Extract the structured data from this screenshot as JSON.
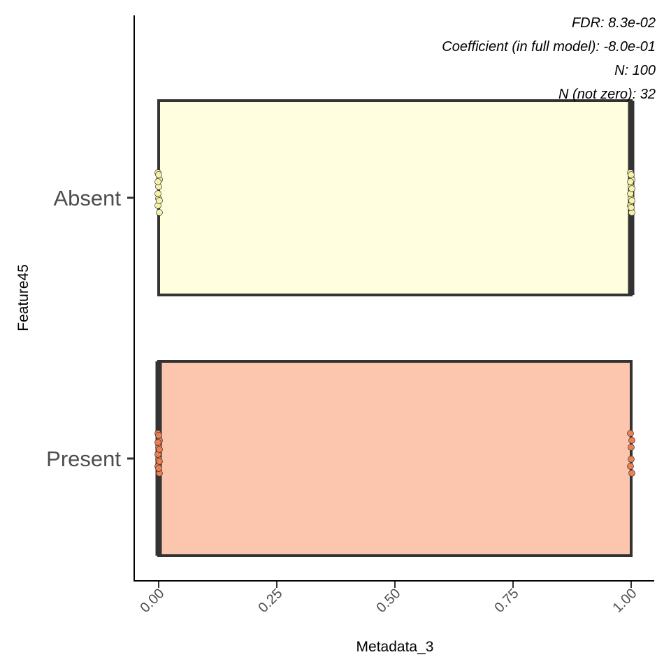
{
  "chart_data": {
    "type": "boxplot",
    "orientation": "horizontal",
    "xlabel": "Metadata_3",
    "ylabel": "Feature45",
    "xlim": [
      -0.05,
      1.05
    ],
    "x_ticks": [
      0,
      0.25,
      0.5,
      0.75,
      1.0
    ],
    "x_tick_labels": [
      "0.00",
      "0.25",
      "0.50",
      "0.75",
      "1.00"
    ],
    "categories": [
      "Absent",
      "Present"
    ],
    "grid": false,
    "legend": "none",
    "annotations": [
      "FDR: 8.3e-02",
      "Coefficient (in full model): -8.0e-01",
      "N: 100",
      "N (not zero): 32"
    ],
    "boxes": [
      {
        "category": "Absent",
        "fill": "#ffffe0",
        "point_color": "#f5f2a8",
        "q1": 0,
        "median": 1,
        "q3": 1,
        "points_at_0": 10,
        "points_at_1": 12
      },
      {
        "category": "Present",
        "fill": "#fcc5ae",
        "point_color": "#ee7f50",
        "q1": 0,
        "median": 0,
        "q3": 1,
        "points_at_0": 12,
        "points_at_1": 6
      }
    ],
    "box_border_color": "#333333"
  }
}
